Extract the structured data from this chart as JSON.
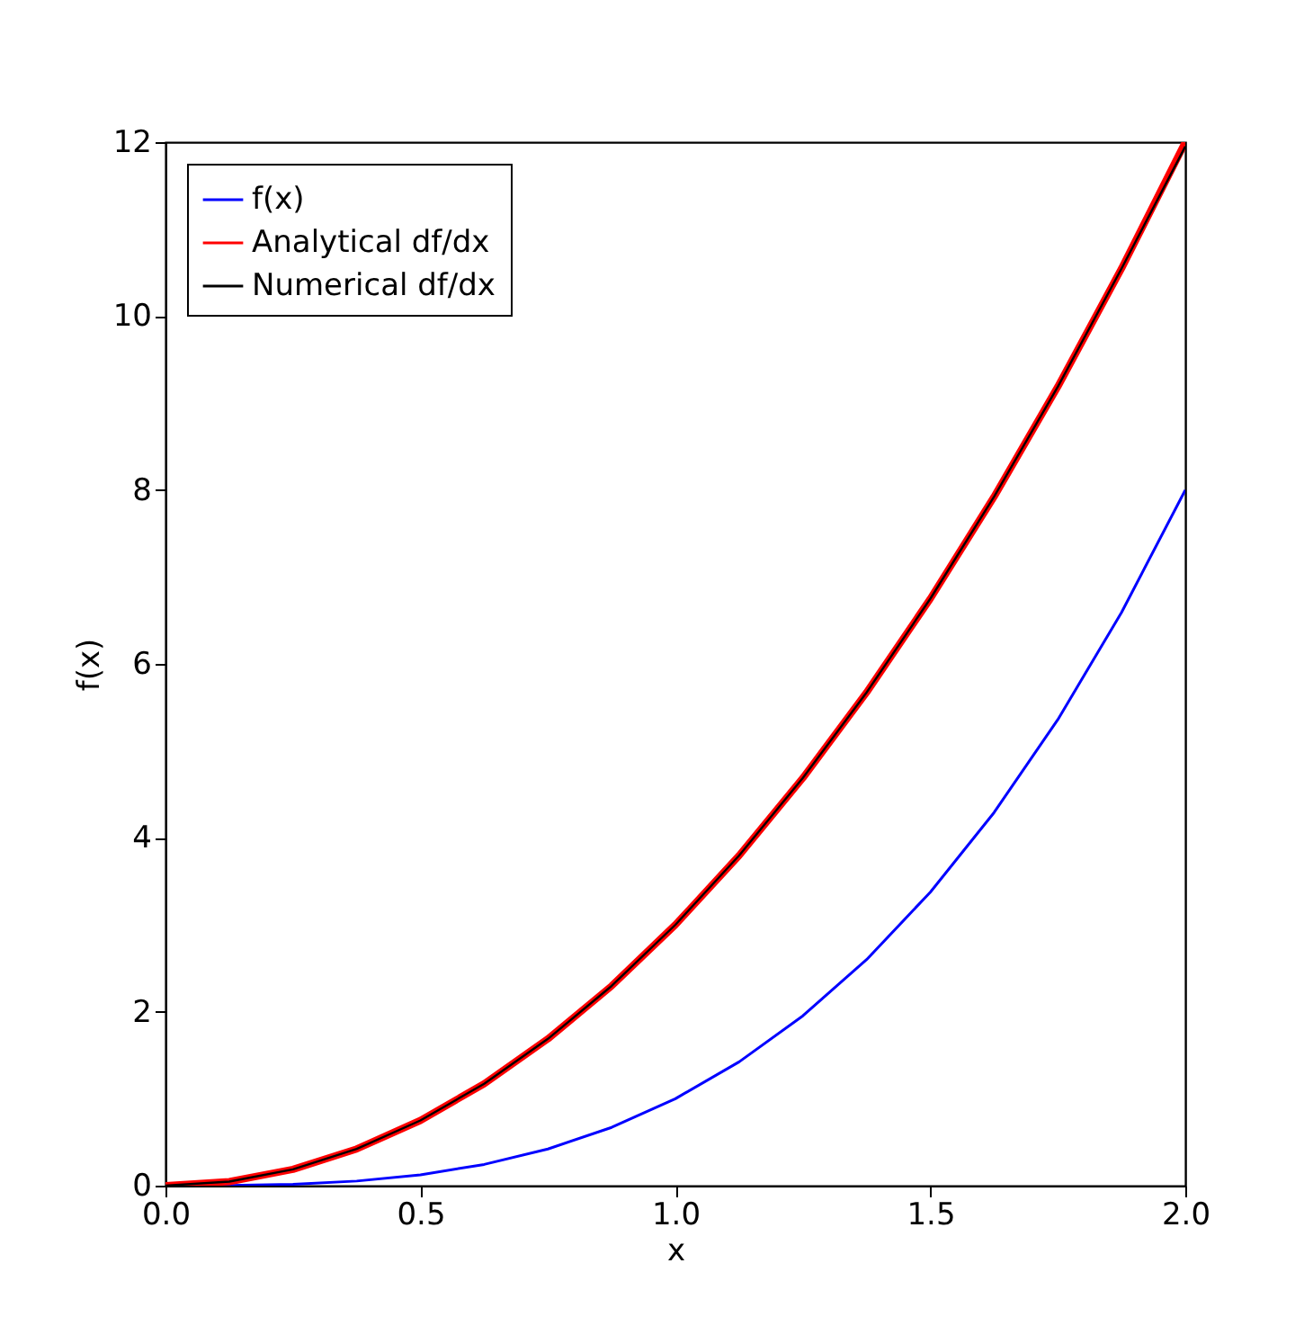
{
  "chart_data": {
    "type": "line",
    "xlabel": "x",
    "ylabel": "f(x)",
    "x": [
      0,
      0.125,
      0.25,
      0.375,
      0.5,
      0.625,
      0.75,
      0.875,
      1,
      1.125,
      1.25,
      1.375,
      1.5,
      1.625,
      1.75,
      1.875,
      2
    ],
    "series": [
      {
        "name": "f(x)",
        "color": "#0000ff",
        "values": [
          0,
          0.002,
          0.016,
          0.053,
          0.125,
          0.244,
          0.422,
          0.67,
          1,
          1.424,
          1.953,
          2.6,
          3.375,
          4.291,
          5.359,
          6.592,
          8
        ]
      },
      {
        "name": "Analytical df/dx",
        "color": "#ff0000",
        "values": [
          0,
          0.047,
          0.188,
          0.422,
          0.75,
          1.172,
          1.688,
          2.297,
          3,
          3.797,
          4.688,
          5.672,
          6.75,
          7.922,
          9.188,
          10.547,
          12
        ]
      },
      {
        "name": "Numerical df/dx",
        "color": "#000000",
        "values": [
          0,
          0.047,
          0.188,
          0.422,
          0.75,
          1.172,
          1.688,
          2.297,
          3,
          3.797,
          4.688,
          5.672,
          6.75,
          7.922,
          9.188,
          10.547,
          11.95
        ]
      }
    ],
    "xlim": [
      0,
      2
    ],
    "xticks": [
      {
        "value": 0,
        "label": "0.0"
      },
      {
        "value": 0.5,
        "label": "0.5"
      },
      {
        "value": 1,
        "label": "1.0"
      },
      {
        "value": 1.5,
        "label": "1.5"
      },
      {
        "value": 2,
        "label": "2.0"
      }
    ],
    "ylim": [
      0,
      12
    ],
    "yticks": [
      0,
      2,
      4,
      6,
      8,
      10,
      12
    ],
    "grid": false,
    "legend": "top left",
    "marker": "none",
    "line_style": "solid"
  }
}
